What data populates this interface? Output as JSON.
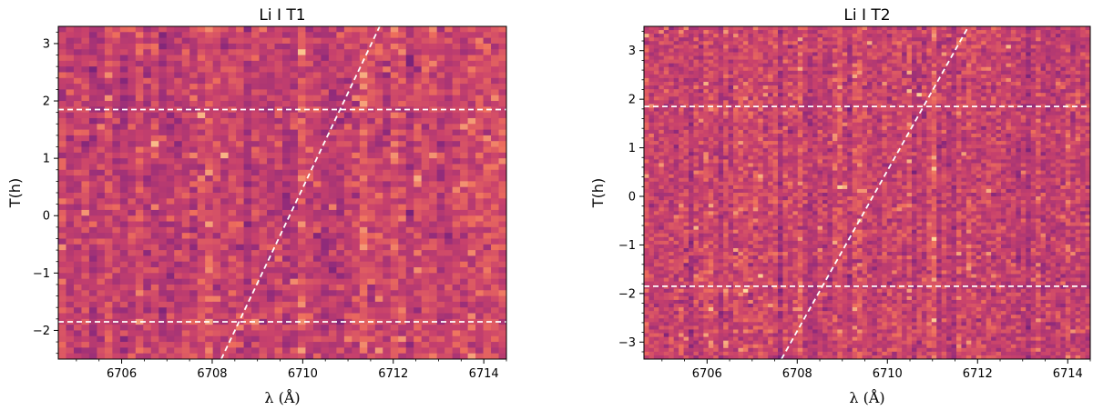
{
  "chart_data": [
    {
      "type": "heatmap",
      "title": "Li I T1",
      "xlabel": "λ (Å)",
      "ylabel": "T(h)",
      "xlim": [
        6704.6,
        6714.5
      ],
      "ylim": [
        -2.5,
        3.3
      ],
      "x_ticks": [
        6706,
        6708,
        6710,
        6712,
        6714
      ],
      "y_ticks": [
        -2,
        -1,
        0,
        1,
        2,
        3
      ],
      "x_tick_labels": [
        "6706",
        "6708",
        "6710",
        "6712",
        "6714"
      ],
      "y_tick_labels": [
        "−2",
        "−1",
        "0",
        "1",
        "2",
        "3"
      ],
      "grid": false,
      "colormap": "magma (mid-range, purple to orange)",
      "pixel_columns": 58,
      "pixel_rows": 58,
      "seed": 17,
      "horizontal_lines_T": [
        1.85,
        -1.85
      ],
      "diagonal_line": {
        "x": [
          6708.2,
          6711.7
        ],
        "y": [
          -2.5,
          3.3
        ]
      },
      "line_color": "#ffffff"
    },
    {
      "type": "heatmap",
      "title": "Li I T2",
      "xlabel": "λ (Å)",
      "ylabel": "T(h)",
      "xlim": [
        6704.6,
        6714.5
      ],
      "ylim": [
        -3.35,
        3.5
      ],
      "x_ticks": [
        6706,
        6708,
        6710,
        6712,
        6714
      ],
      "y_ticks": [
        -3,
        -2,
        -1,
        0,
        1,
        2,
        3
      ],
      "x_tick_labels": [
        "6706",
        "6708",
        "6710",
        "6712",
        "6714"
      ],
      "y_tick_labels": [
        "−3",
        "−2",
        "−1",
        "0",
        "1",
        "2",
        "3"
      ],
      "grid": false,
      "colormap": "magma (mid-range, purple to orange)",
      "pixel_columns": 90,
      "pixel_rows": 90,
      "seed": 29,
      "horizontal_lines_T": [
        1.85,
        -1.85
      ],
      "diagonal_line": {
        "x": [
          6707.65,
          6711.8
        ],
        "y": [
          -3.35,
          3.5
        ]
      },
      "line_color": "#ffffff"
    }
  ]
}
